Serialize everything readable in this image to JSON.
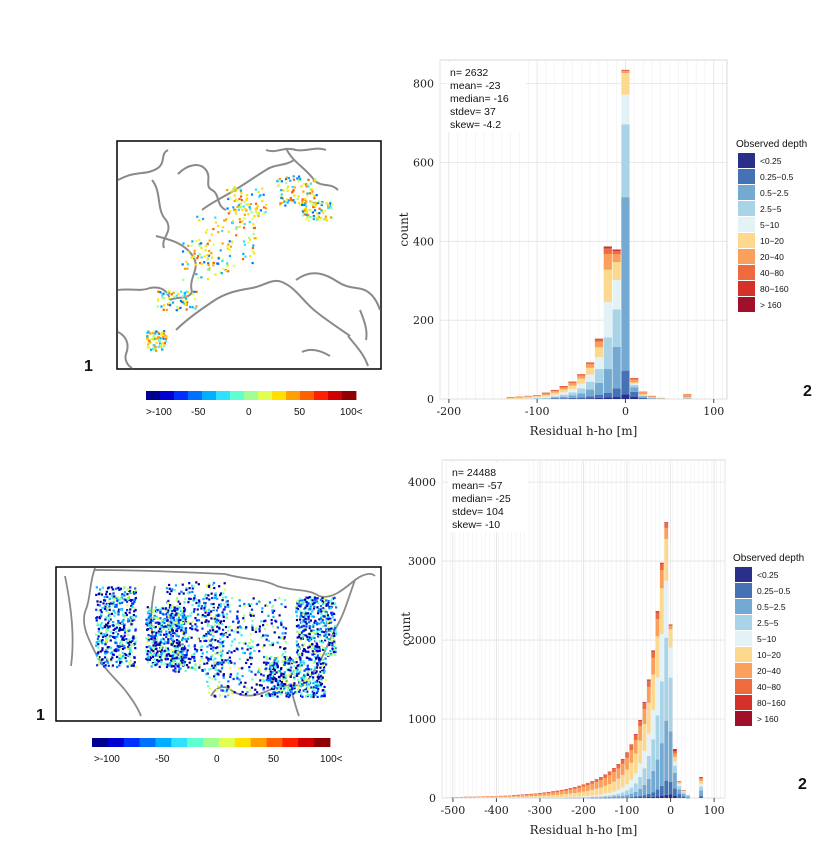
{
  "colors": {
    "depth": [
      "#2a2f8a",
      "#4472b5",
      "#74a9d1",
      "#a9d3e7",
      "#e2f2f6",
      "#fdd990",
      "#fba05c",
      "#ee6a3f",
      "#d4312a",
      "#a0102b"
    ],
    "colorbar": [
      "#00008f",
      "#0000d0",
      "#0030ff",
      "#0070ff",
      "#00b0ff",
      "#30e0ff",
      "#60ffd0",
      "#a0ff90",
      "#e0ff50",
      "#ffe000",
      "#ffa000",
      "#ff6000",
      "#ff2000",
      "#d00000",
      "#900000"
    ]
  },
  "europe": {
    "panel_label_left": "1",
    "panel_label_right": "2",
    "colorbar_labels": [
      ">-100",
      "-50",
      "0",
      "50",
      "100<"
    ]
  },
  "usa": {
    "panel_label_left": "1",
    "panel_label_right": "2",
    "colorbar_labels": [
      ">-100",
      "-50",
      "0",
      "50",
      "100<"
    ]
  },
  "chart_data": [
    {
      "type": "bar",
      "stacked": true,
      "xlabel": "Residual h-ho [m]",
      "ylabel": "count",
      "xlim": [
        -210,
        115
      ],
      "ylim": [
        0,
        860
      ],
      "xticks": [
        -200,
        -100,
        0,
        100
      ],
      "yticks": [
        0,
        200,
        400,
        600,
        800
      ],
      "bin_width": 10,
      "stats": [
        "n= 2632",
        "mean= -23",
        "median= -16",
        "stdev= 37",
        "skew= -4.2"
      ],
      "legend_title": "Observed depth",
      "legend": [
        "<0.25",
        "0.25−0.5",
        "0.5−2.5",
        "2.5−5",
        "5−10",
        "10−20",
        "20−40",
        "40−80",
        "80−160",
        "> 160"
      ],
      "bins": [
        {
          "x": -130,
          "counts": [
            0,
            0,
            0,
            0,
            0,
            2,
            2,
            1,
            0,
            0
          ]
        },
        {
          "x": -120,
          "counts": [
            0,
            0,
            0,
            0,
            0,
            3,
            2,
            1,
            0,
            0
          ]
        },
        {
          "x": -110,
          "counts": [
            0,
            0,
            0,
            1,
            1,
            3,
            2,
            1,
            0,
            0
          ]
        },
        {
          "x": -100,
          "counts": [
            0,
            0,
            1,
            1,
            2,
            3,
            2,
            1,
            0,
            0
          ]
        },
        {
          "x": -90,
          "counts": [
            0,
            0,
            1,
            2,
            3,
            4,
            3,
            2,
            1,
            0
          ]
        },
        {
          "x": -80,
          "counts": [
            1,
            1,
            2,
            3,
            4,
            5,
            4,
            2,
            1,
            0
          ]
        },
        {
          "x": -70,
          "counts": [
            1,
            1,
            4,
            5,
            6,
            7,
            5,
            3,
            1,
            0
          ]
        },
        {
          "x": -60,
          "counts": [
            1,
            2,
            6,
            8,
            8,
            9,
            6,
            3,
            1,
            0
          ]
        },
        {
          "x": -50,
          "counts": [
            1,
            3,
            10,
            13,
            12,
            13,
            7,
            3,
            1,
            0
          ]
        },
        {
          "x": -40,
          "counts": [
            2,
            5,
            17,
            20,
            18,
            17,
            9,
            4,
            1,
            0
          ]
        },
        {
          "x": -30,
          "counts": [
            3,
            8,
            30,
            35,
            30,
            25,
            14,
            6,
            2,
            0
          ]
        },
        {
          "x": -20,
          "counts": [
            4,
            12,
            60,
            80,
            90,
            82,
            40,
            14,
            4,
            1
          ]
        },
        {
          "x": -10,
          "counts": [
            5,
            22,
            105,
            95,
            75,
            45,
            20,
            8,
            3,
            1
          ]
        },
        {
          "x": 0,
          "counts": [
            12,
            60,
            440,
            185,
            75,
            55,
            5,
            2,
            1,
            0
          ]
        },
        {
          "x": 10,
          "counts": [
            6,
            12,
            12,
            6,
            3,
            3,
            7,
            3,
            1,
            0
          ]
        },
        {
          "x": 20,
          "counts": [
            1,
            2,
            4,
            2,
            1,
            2,
            6,
            1,
            0,
            0
          ]
        },
        {
          "x": 30,
          "counts": [
            0,
            0,
            2,
            1,
            0,
            1,
            3,
            1,
            0,
            0
          ]
        },
        {
          "x": 40,
          "counts": [
            0,
            0,
            1,
            0,
            0,
            1,
            1,
            0,
            0,
            0
          ]
        },
        {
          "x": 70,
          "counts": [
            0,
            0,
            1,
            1,
            0,
            2,
            6,
            2,
            0,
            0
          ]
        }
      ]
    },
    {
      "type": "bar",
      "stacked": true,
      "xlabel": "Residual h-ho [m]",
      "ylabel": "count",
      "xlim": [
        -525,
        125
      ],
      "ylim": [
        0,
        4280
      ],
      "xticks": [
        -500,
        -400,
        -300,
        -200,
        -100,
        0,
        100
      ],
      "yticks": [
        0,
        1000,
        2000,
        3000,
        4000
      ],
      "bin_width": 10,
      "stats": [
        "n= 24488",
        "mean= -57",
        "median= -25",
        "stdev= 104",
        "skew= -10"
      ],
      "legend_title": "Observed depth",
      "legend": [
        "<0.25",
        "0.25−0.5",
        "0.5−2.5",
        "2.5−5",
        "5−10",
        "10−20",
        "20−40",
        "40−80",
        "80−160",
        "> 160"
      ],
      "bins": [
        {
          "x": -500,
          "counts": [
            0,
            0,
            0,
            0,
            0,
            5,
            5,
            2,
            0,
            0
          ]
        },
        {
          "x": -490,
          "counts": [
            0,
            0,
            0,
            0,
            0,
            5,
            6,
            2,
            0,
            0
          ]
        },
        {
          "x": -480,
          "counts": [
            0,
            0,
            0,
            0,
            0,
            6,
            6,
            2,
            0,
            0
          ]
        },
        {
          "x": -470,
          "counts": [
            0,
            0,
            0,
            0,
            0,
            6,
            7,
            3,
            0,
            0
          ]
        },
        {
          "x": -460,
          "counts": [
            0,
            0,
            0,
            0,
            0,
            7,
            7,
            3,
            0,
            0
          ]
        },
        {
          "x": -450,
          "counts": [
            0,
            0,
            0,
            0,
            0,
            7,
            8,
            3,
            0,
            0
          ]
        },
        {
          "x": -440,
          "counts": [
            0,
            0,
            0,
            0,
            1,
            8,
            8,
            3,
            0,
            0
          ]
        },
        {
          "x": -430,
          "counts": [
            0,
            0,
            0,
            0,
            1,
            8,
            9,
            4,
            0,
            0
          ]
        },
        {
          "x": -420,
          "counts": [
            0,
            0,
            0,
            0,
            1,
            9,
            9,
            4,
            0,
            0
          ]
        },
        {
          "x": -410,
          "counts": [
            0,
            0,
            0,
            0,
            1,
            9,
            10,
            4,
            0,
            0
          ]
        },
        {
          "x": -400,
          "counts": [
            0,
            0,
            0,
            0,
            1,
            10,
            11,
            4,
            0,
            0
          ]
        },
        {
          "x": -390,
          "counts": [
            0,
            0,
            0,
            0,
            1,
            10,
            12,
            5,
            0,
            0
          ]
        },
        {
          "x": -380,
          "counts": [
            0,
            0,
            0,
            0,
            1,
            11,
            13,
            5,
            0,
            0
          ]
        },
        {
          "x": -370,
          "counts": [
            0,
            0,
            0,
            1,
            1,
            12,
            14,
            5,
            0,
            0
          ]
        },
        {
          "x": -360,
          "counts": [
            0,
            0,
            0,
            1,
            2,
            13,
            15,
            6,
            1,
            0
          ]
        },
        {
          "x": -350,
          "counts": [
            0,
            0,
            0,
            1,
            2,
            14,
            16,
            6,
            1,
            0
          ]
        },
        {
          "x": -340,
          "counts": [
            0,
            0,
            0,
            1,
            2,
            15,
            18,
            7,
            1,
            0
          ]
        },
        {
          "x": -330,
          "counts": [
            0,
            0,
            0,
            1,
            2,
            17,
            19,
            7,
            1,
            0
          ]
        },
        {
          "x": -320,
          "counts": [
            0,
            0,
            0,
            1,
            3,
            18,
            21,
            8,
            1,
            0
          ]
        },
        {
          "x": -310,
          "counts": [
            0,
            0,
            0,
            1,
            3,
            20,
            23,
            9,
            1,
            0
          ]
        },
        {
          "x": -300,
          "counts": [
            0,
            0,
            0,
            2,
            3,
            22,
            25,
            10,
            1,
            0
          ]
        },
        {
          "x": -290,
          "counts": [
            0,
            0,
            1,
            2,
            4,
            24,
            27,
            11,
            1,
            0
          ]
        },
        {
          "x": -280,
          "counts": [
            0,
            0,
            1,
            2,
            4,
            26,
            30,
            12,
            1,
            0
          ]
        },
        {
          "x": -270,
          "counts": [
            0,
            0,
            1,
            2,
            5,
            29,
            33,
            13,
            2,
            0
          ]
        },
        {
          "x": -260,
          "counts": [
            0,
            0,
            1,
            3,
            5,
            31,
            36,
            14,
            2,
            0
          ]
        },
        {
          "x": -250,
          "counts": [
            0,
            0,
            1,
            3,
            6,
            35,
            40,
            15,
            2,
            0
          ]
        },
        {
          "x": -240,
          "counts": [
            0,
            1,
            1,
            3,
            7,
            38,
            44,
            17,
            2,
            0
          ]
        },
        {
          "x": -230,
          "counts": [
            0,
            1,
            2,
            4,
            8,
            42,
            48,
            19,
            2,
            0
          ]
        },
        {
          "x": -220,
          "counts": [
            0,
            1,
            2,
            4,
            9,
            47,
            53,
            21,
            2,
            0
          ]
        },
        {
          "x": -210,
          "counts": [
            0,
            1,
            2,
            5,
            10,
            52,
            58,
            23,
            3,
            0
          ]
        },
        {
          "x": -200,
          "counts": [
            0,
            1,
            3,
            6,
            12,
            58,
            64,
            25,
            3,
            0
          ]
        },
        {
          "x": -190,
          "counts": [
            0,
            1,
            3,
            7,
            14,
            65,
            70,
            28,
            3,
            0
          ]
        },
        {
          "x": -180,
          "counts": [
            1,
            2,
            4,
            8,
            16,
            72,
            77,
            30,
            4,
            0
          ]
        },
        {
          "x": -170,
          "counts": [
            1,
            2,
            5,
            10,
            19,
            80,
            84,
            33,
            4,
            0
          ]
        },
        {
          "x": -160,
          "counts": [
            1,
            2,
            6,
            12,
            22,
            90,
            92,
            36,
            5,
            0
          ]
        },
        {
          "x": -150,
          "counts": [
            1,
            3,
            8,
            15,
            27,
            100,
            100,
            40,
            5,
            0
          ]
        },
        {
          "x": -140,
          "counts": [
            1,
            3,
            10,
            18,
            33,
            112,
            110,
            43,
            5,
            0
          ]
        },
        {
          "x": -130,
          "counts": [
            2,
            4,
            13,
            23,
            40,
            125,
            120,
            46,
            6,
            0
          ]
        },
        {
          "x": -120,
          "counts": [
            2,
            5,
            17,
            30,
            50,
            140,
            130,
            50,
            6,
            0
          ]
        },
        {
          "x": -110,
          "counts": [
            2,
            6,
            22,
            40,
            62,
            160,
            140,
            54,
            7,
            1
          ]
        },
        {
          "x": -100,
          "counts": [
            3,
            8,
            30,
            55,
            78,
            185,
            150,
            58,
            8,
            1
          ]
        },
        {
          "x": -90,
          "counts": [
            4,
            10,
            42,
            75,
            100,
            215,
            160,
            62,
            8,
            1
          ]
        },
        {
          "x": -80,
          "counts": [
            5,
            14,
            60,
            105,
            130,
            250,
            170,
            66,
            9,
            1
          ]
        },
        {
          "x": -70,
          "counts": [
            7,
            20,
            90,
            150,
            170,
            290,
            180,
            70,
            10,
            1
          ]
        },
        {
          "x": -60,
          "counts": [
            9,
            28,
            130,
            210,
            220,
            340,
            190,
            74,
            11,
            1
          ]
        },
        {
          "x": -50,
          "counts": [
            12,
            40,
            190,
            290,
            285,
            390,
            200,
            78,
            12,
            1
          ]
        },
        {
          "x": -40,
          "counts": [
            16,
            58,
            270,
            400,
            370,
            450,
            210,
            80,
            13,
            1
          ]
        },
        {
          "x": -30,
          "counts": [
            22,
            85,
            380,
            560,
            480,
            520,
            220,
            82,
            14,
            1
          ]
        },
        {
          "x": -20,
          "counts": [
            30,
            125,
            540,
            780,
            600,
            580,
            230,
            80,
            12,
            1
          ]
        },
        {
          "x": -10,
          "counts": [
            40,
            180,
            760,
            1050,
            720,
            530,
            140,
            60,
            10,
            1
          ]
        },
        {
          "x": 0,
          "counts": [
            45,
            160,
            640,
            680,
            380,
            230,
            40,
            15,
            4,
            1
          ]
        },
        {
          "x": 10,
          "counts": [
            30,
            90,
            200,
            90,
            50,
            60,
            40,
            30,
            20,
            10
          ]
        },
        {
          "x": 20,
          "counts": [
            10,
            40,
            60,
            40,
            25,
            20,
            10,
            5,
            2,
            0
          ]
        },
        {
          "x": 30,
          "counts": [
            5,
            15,
            30,
            20,
            10,
            10,
            5,
            2,
            1,
            0
          ]
        },
        {
          "x": 40,
          "counts": [
            2,
            6,
            12,
            8,
            4,
            4,
            2,
            1,
            0,
            0
          ]
        },
        {
          "x": 70,
          "counts": [
            5,
            20,
            70,
            50,
            30,
            40,
            30,
            15,
            5,
            1
          ]
        }
      ]
    }
  ]
}
